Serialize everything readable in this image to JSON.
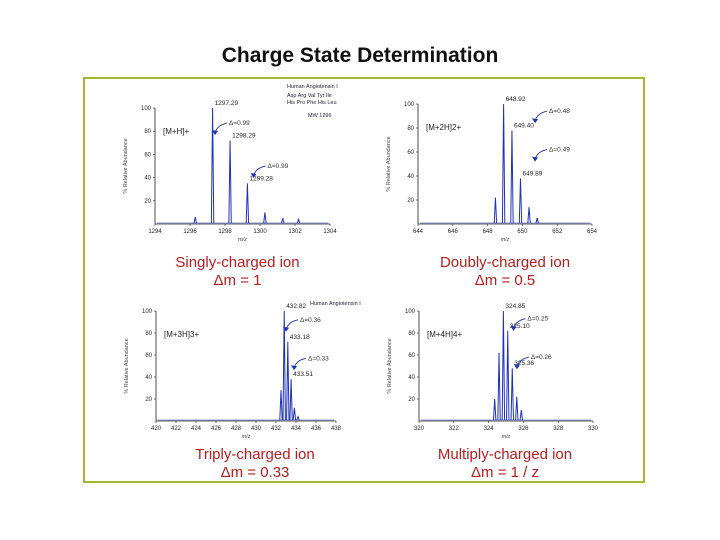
{
  "title": "Charge State Determination",
  "colors": {
    "frame": "#9dbb2a",
    "caption": "#b81d1d",
    "trace": "#1f33b5",
    "annotation": "#1f33b5"
  },
  "peptide_info": {
    "name": "Human Angiotensin I",
    "sequence_1": "Asp Arg Val Tyr Ile",
    "sequence_2": "His Pro Phe His Leu",
    "mw": "MW 1296",
    "name_bottom": "Human Angiotensin I"
  },
  "chart_data": [
    {
      "type": "line",
      "panel": "singly-charged",
      "ion_label": "[M+H]+",
      "xlabel": "m/z",
      "ylabel": "% Relative Abundance",
      "xlim": [
        1294,
        1304
      ],
      "ylim": [
        0,
        100
      ],
      "xticks": [
        "1294",
        "1296",
        "1298",
        "1300",
        "1302",
        "1304"
      ],
      "yticks": [
        "20",
        "40",
        "60",
        "80",
        "100"
      ],
      "peaks": [
        {
          "x": 1297.29,
          "y": 100,
          "label": "1297.29"
        },
        {
          "x": 1298.29,
          "y": 72,
          "label": "1298.29"
        },
        {
          "x": 1299.28,
          "y": 35,
          "label": "1299.28"
        },
        {
          "x": 1300.28,
          "y": 10
        },
        {
          "x": 1296.3,
          "y": 6
        },
        {
          "x": 1301.3,
          "y": 5
        },
        {
          "x": 1302.2,
          "y": 4
        }
      ],
      "annotations": [
        {
          "x": 1298.0,
          "y": 87,
          "text": "Δ=0.99"
        },
        {
          "x": 1300.2,
          "y": 50,
          "text": "Δ=0.99"
        }
      ],
      "caption_1": "Singly-charged ion",
      "caption_2": "Δm = 1"
    },
    {
      "type": "line",
      "panel": "doubly-charged",
      "ion_label": "[M+2H]2+",
      "xlabel": "m/z",
      "ylabel": "% Relative Abundance",
      "xlim": [
        644,
        654
      ],
      "ylim": [
        0,
        100
      ],
      "xticks": [
        "644",
        "646",
        "648",
        "650",
        "652",
        "654"
      ],
      "yticks": [
        "20",
        "40",
        "60",
        "80",
        "100"
      ],
      "peaks": [
        {
          "x": 648.92,
          "y": 100,
          "label": "648.92"
        },
        {
          "x": 649.4,
          "y": 78,
          "label": "649.40"
        },
        {
          "x": 649.89,
          "y": 38,
          "label": "649.89"
        },
        {
          "x": 648.45,
          "y": 22
        },
        {
          "x": 650.38,
          "y": 14
        },
        {
          "x": 650.85,
          "y": 5
        }
      ],
      "annotations": [
        {
          "x": 651.3,
          "y": 94,
          "text": "Δ=0.48"
        },
        {
          "x": 651.3,
          "y": 62,
          "text": "Δ=0.49"
        }
      ],
      "caption_1": "Doubly-charged ion",
      "caption_2": "Δm = 0.5"
    },
    {
      "type": "line",
      "panel": "triply-charged",
      "ion_label": "[M+3H]3+",
      "xlabel": "m/z",
      "ylabel": "% Relative Abundance",
      "xlim": [
        420,
        438
      ],
      "ylim": [
        0,
        100
      ],
      "xticks": [
        "420",
        "422",
        "424",
        "426",
        "428",
        "430",
        "432",
        "434",
        "436",
        "438"
      ],
      "yticks": [
        "20",
        "40",
        "60",
        "80",
        "100"
      ],
      "peaks": [
        {
          "x": 432.82,
          "y": 100,
          "label": "432.82"
        },
        {
          "x": 433.18,
          "y": 72,
          "label": "433.18"
        },
        {
          "x": 433.51,
          "y": 38,
          "label": "433.51"
        },
        {
          "x": 432.5,
          "y": 28
        },
        {
          "x": 433.84,
          "y": 12
        },
        {
          "x": 434.2,
          "y": 4
        }
      ],
      "annotations": [
        {
          "x": 434.0,
          "y": 92,
          "text": "Δ=0.36"
        },
        {
          "x": 434.8,
          "y": 57,
          "text": "Δ=0.33"
        }
      ],
      "caption_1": "Triply-charged ion",
      "caption_2": "Δm = 0.33"
    },
    {
      "type": "line",
      "panel": "multiply-charged",
      "ion_label": "[M+4H]4+",
      "xlabel": "m/z",
      "ylabel": "% Relative Abundance",
      "xlim": [
        320,
        330
      ],
      "ylim": [
        0,
        100
      ],
      "xticks": [
        "320",
        "322",
        "324",
        "326",
        "328",
        "330"
      ],
      "yticks": [
        "20",
        "40",
        "60",
        "80",
        "100"
      ],
      "peaks": [
        {
          "x": 324.85,
          "y": 100,
          "label": "324.85"
        },
        {
          "x": 325.1,
          "y": 82,
          "label": "325.10"
        },
        {
          "x": 325.36,
          "y": 48,
          "label": "325.36"
        },
        {
          "x": 324.6,
          "y": 62
        },
        {
          "x": 324.35,
          "y": 20
        },
        {
          "x": 325.62,
          "y": 22
        },
        {
          "x": 325.88,
          "y": 10
        }
      ],
      "annotations": [
        {
          "x": 326.0,
          "y": 93,
          "text": "Δ=0.25"
        },
        {
          "x": 326.2,
          "y": 58,
          "text": "Δ=0.26"
        }
      ],
      "caption_1": "Multiply-charged ion",
      "caption_2": "Δm = 1 / z"
    }
  ]
}
